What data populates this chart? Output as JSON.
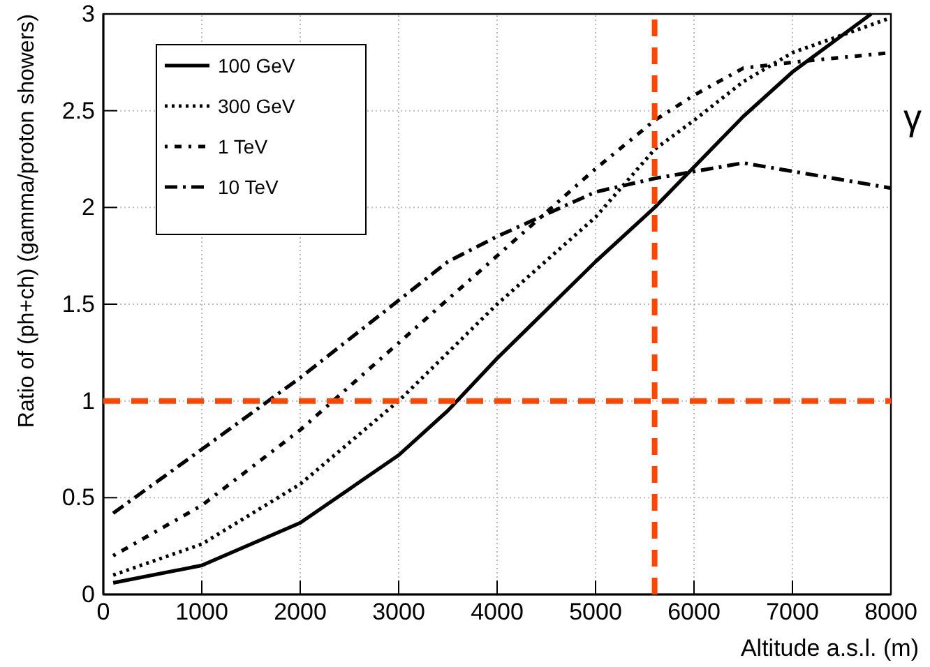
{
  "chart_data": {
    "type": "line",
    "xlabel": "Altitude a.s.l. (m)",
    "ylabel": "Ratio of (ph+ch) (gamma/proton showers)",
    "xlim": [
      0,
      8000
    ],
    "xticks": [
      0,
      1000,
      2000,
      3000,
      4000,
      5000,
      6000,
      7000,
      8000
    ],
    "ylim": [
      0,
      3
    ],
    "yticks": [
      0,
      0.5,
      1,
      1.5,
      2,
      2.5,
      3
    ],
    "grid": true,
    "legend": "top left",
    "marker": "none",
    "series": [
      {
        "name": "100 GeV",
        "color": "#000000",
        "line_style": "solid",
        "x": [
          100,
          1000,
          2000,
          3000,
          3500,
          4000,
          5000,
          5600,
          6500,
          7000,
          7800
        ],
        "values": [
          0.06,
          0.15,
          0.37,
          0.72,
          0.95,
          1.22,
          1.72,
          2.0,
          2.47,
          2.7,
          3.0
        ]
      },
      {
        "name": "300 GeV",
        "color": "#000000",
        "line_style": "dotted",
        "x": [
          100,
          1000,
          2000,
          3000,
          4000,
          5000,
          5600,
          6000,
          6500,
          7000,
          8000
        ],
        "values": [
          0.1,
          0.26,
          0.57,
          1.0,
          1.5,
          1.95,
          2.3,
          2.45,
          2.65,
          2.8,
          2.98
        ]
      },
      {
        "name": "1 TeV",
        "color": "#000000",
        "line_style": "dashdotdot",
        "x": [
          100,
          1000,
          2000,
          3000,
          4000,
          5000,
          5600,
          6000,
          6500,
          7000,
          8000
        ],
        "values": [
          0.2,
          0.46,
          0.85,
          1.3,
          1.75,
          2.2,
          2.45,
          2.58,
          2.72,
          2.75,
          2.8
        ]
      },
      {
        "name": "10 TeV",
        "color": "#000000",
        "line_style": "dashdot",
        "x": [
          100,
          1000,
          2000,
          3000,
          3500,
          4000,
          5000,
          5600,
          6500,
          8000
        ],
        "values": [
          0.42,
          0.75,
          1.12,
          1.52,
          1.72,
          1.85,
          2.08,
          2.15,
          2.23,
          2.1
        ]
      }
    ],
    "ref_lines": [
      {
        "axis": "y",
        "value": 1,
        "color": "#ff4500",
        "line_style": "dashed"
      },
      {
        "axis": "x",
        "value": 5600,
        "color": "#ff4500",
        "line_style": "dashed"
      }
    ],
    "annotations": [
      "γ"
    ]
  }
}
